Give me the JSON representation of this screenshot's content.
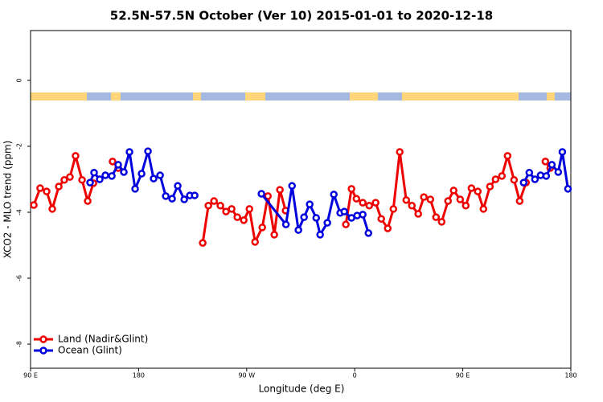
{
  "chart_data": {
    "type": "line",
    "title": "52.5N-57.5N October (Ver 10)   2015-01-01 to 2020-12-18",
    "xlabel": "Longitude (deg E)",
    "ylabel": "XCO2 - MLO trend (ppm)",
    "xlim": [
      90,
      540
    ],
    "xticks": [
      {
        "value": 90,
        "label": "90 E"
      },
      {
        "value": 180,
        "label": "180"
      },
      {
        "value": 270,
        "label": "90 W"
      },
      {
        "value": 360,
        "label": "0"
      },
      {
        "value": 450,
        "label": "90 E"
      },
      {
        "value": 540,
        "label": "180"
      }
    ],
    "ylim": [
      -8.73,
      1.51
    ],
    "yticks": [
      0,
      -2,
      -4,
      -6,
      -8
    ],
    "legend": "bottom-left",
    "series": [
      {
        "name": "Land (Nadir&Glint)",
        "color": "#ee0000",
        "x": [
          92.7,
          98,
          103.4,
          108.1,
          113.5,
          118.1,
          122.8,
          127.5,
          132.9,
          137.6,
          142.3,
          null,
          158.3,
          163,
          null,
          233.4,
          238.1,
          242.8,
          248.1,
          252.8,
          257.5,
          262.2,
          267.6,
          272.3,
          277,
          283,
          287.7,
          293,
          297.7,
          302.4,
          null,
          352.6,
          357.3,
          361.4,
          366.7,
          372.1,
          377.4,
          382.1,
          387.5,
          392.2,
          397.5,
          402.9,
          407.6,
          412.9,
          417.6,
          423,
          427.7,
          432.4,
          437.7,
          442.4,
          447.8,
          452.5,
          457.2,
          462.5,
          467.2,
          472.6,
          477.3,
          482.6,
          487.3,
          492.7,
          497.4,
          502.7,
          null,
          518.8,
          522.8
        ],
        "values": [
          -3.78,
          -3.27,
          -3.37,
          -3.9,
          -3.22,
          -3.02,
          -2.93,
          -2.29,
          -3.02,
          -3.66,
          -3.12,
          null,
          -2.46,
          -2.66,
          null,
          -4.93,
          -3.8,
          -3.66,
          -3.8,
          -3.98,
          -3.9,
          -4.15,
          -4.24,
          -3.9,
          -4.9,
          -4.46,
          -3.51,
          -4.68,
          -3.32,
          -3.95,
          null,
          -4.37,
          -3.29,
          -3.59,
          -3.71,
          -3.8,
          -3.71,
          -4.2,
          -4.49,
          -3.9,
          -2.17,
          -3.63,
          -3.8,
          -4.05,
          -3.54,
          -3.61,
          -4.15,
          -4.29,
          -3.66,
          -3.34,
          -3.61,
          -3.8,
          -3.27,
          -3.37,
          -3.9,
          -3.22,
          -3,
          -2.9,
          -2.29,
          -3.02,
          -3.66,
          -3.1,
          null,
          -2.46,
          -2.66
        ]
      },
      {
        "name": "Ocean (Glint)",
        "color": "#0000dd",
        "x": [
          139.6,
          142.9,
          147.6,
          152.3,
          157.7,
          163,
          167.7,
          172.4,
          177.1,
          182.5,
          187.8,
          192.5,
          197.9,
          202.6,
          207.9,
          212.6,
          218,
          222.7,
          226.7,
          null,
          282.3,
          302.7,
          307.8,
          313.1,
          317.8,
          322.5,
          327.9,
          331.2,
          337.2,
          342.6,
          347.9,
          351.3,
          357.3,
          362,
          366.7,
          371.4,
          null,
          500.7,
          505.4,
          510.1,
          514.8,
          519.5,
          524.2,
          529.5,
          532.9,
          537.6
        ],
        "values": [
          -3.1,
          -2.8,
          -3,
          -2.88,
          -2.9,
          -2.56,
          -2.78,
          -2.17,
          -3.29,
          -2.83,
          -2.15,
          -2.98,
          -2.88,
          -3.51,
          -3.59,
          -3.2,
          -3.61,
          -3.49,
          -3.49,
          null,
          -3.44,
          -4.37,
          -3.2,
          -4.54,
          -4.15,
          -3.76,
          -4.17,
          -4.68,
          -4.32,
          -3.46,
          -4.02,
          -3.98,
          -4.17,
          -4.1,
          -4.07,
          -4.63,
          null,
          -3.1,
          -2.8,
          -3,
          -2.88,
          -2.9,
          -2.56,
          -2.78,
          -2.17,
          -3.29
        ]
      }
    ]
  }
}
